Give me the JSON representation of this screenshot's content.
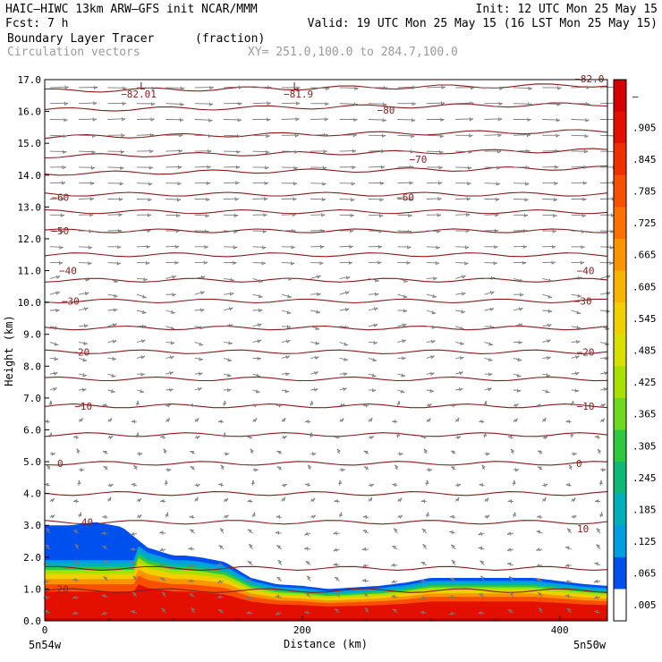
{
  "header": {
    "line1_left": "HAIC—HIWC 13km ARW—GFS init   NCAR/MMM",
    "line1_right": "Init: 12 UTC Mon 25 May 15",
    "line2_left": "Fcst:    7 h",
    "line2_right": "Valid: 19 UTC Mon 25 May 15 (16 LST Mon 25 May 15)",
    "field1_name": "Boundary Layer Tracer",
    "field1_units": "(fraction)",
    "field2_name": "Circulation vectors",
    "xsect_coords": "XY= 251.0,100.0 to 284.7,100.0"
  },
  "colors": {
    "contour": "#8b1a1a",
    "vector": "#7a7a7a",
    "header_gray": "#9a9a9a"
  },
  "chart_data": {
    "type": "heatmap",
    "ylabel": "Height (km)",
    "xlabel": "Distance (km)",
    "ylim": [
      0,
      17
    ],
    "xlim": [
      0,
      437
    ],
    "y_ticks": [
      "0.0",
      "1.0",
      "2.0",
      "3.0",
      "4.0",
      "5.0",
      "6.0",
      "7.0",
      "8.0",
      "9.0",
      "10.0",
      "11.0",
      "12.0",
      "13.0",
      "14.0",
      "15.0",
      "16.0",
      "17.0"
    ],
    "x_ticks": [
      0,
      200,
      400
    ],
    "x_tick_labels": [
      "0",
      "200",
      "400"
    ],
    "x_endpoint_left": "5n54w",
    "x_endpoint_right": "5n50w",
    "colorbar": {
      "labels": [
        "–",
        ".905",
        ".845",
        ".785",
        ".725",
        ".665",
        ".605",
        ".545",
        ".485",
        ".425",
        ".365",
        ".305",
        ".245",
        ".185",
        ".125",
        ".065",
        ".005"
      ],
      "colors": [
        "#d40000",
        "#e31000",
        "#f03000",
        "#f85000",
        "#fc7000",
        "#fc9400",
        "#f8b400",
        "#f0d000",
        "#d8e000",
        "#a8e000",
        "#70d820",
        "#30c840",
        "#10b878",
        "#00b0b8",
        "#00a0e0",
        "#0050f0",
        "#ffffff"
      ]
    },
    "tracer_profile": {
      "x_km": [
        0,
        20,
        40,
        60,
        80,
        100,
        110,
        120,
        140,
        160,
        180,
        200,
        220,
        240,
        260,
        280,
        300,
        320,
        340,
        360,
        380,
        400,
        420,
        437
      ],
      "top_km": [
        3.0,
        3.0,
        3.1,
        2.95,
        2.3,
        2.05,
        2.05,
        2.0,
        1.85,
        1.35,
        1.15,
        1.1,
        1.0,
        1.05,
        1.1,
        1.2,
        1.35,
        1.35,
        1.35,
        1.35,
        1.35,
        1.25,
        1.15,
        1.1
      ]
    },
    "temperature_contours": {
      "levels": [
        -80,
        -70,
        -60,
        -50,
        -40,
        -30,
        -20,
        -10,
        0,
        10,
        20
      ],
      "lines_km": [
        0.95,
        1.65,
        3.1,
        4.0,
        4.95,
        5.85,
        6.75,
        7.6,
        8.45,
        9.2,
        10.05,
        10.7,
        11.5,
        12.25,
        12.85,
        13.4,
        14.05,
        14.6,
        15.2,
        16.05,
        16.65
      ],
      "labels": [
        {
          "text": "20",
          "x_km": 14,
          "y_km": 1.0
        },
        {
          "text": "40",
          "x_km": 33,
          "y_km": 3.1
        },
        {
          "text": "10",
          "x_km": 418,
          "y_km": 2.9
        },
        {
          "text": "0",
          "x_km": 12,
          "y_km": 4.95
        },
        {
          "text": "0",
          "x_km": 415,
          "y_km": 4.95
        },
        {
          "text": "−10",
          "x_km": 30,
          "y_km": 6.75
        },
        {
          "text": "−10",
          "x_km": 420,
          "y_km": 6.75
        },
        {
          "text": "−20",
          "x_km": 28,
          "y_km": 8.45
        },
        {
          "text": "−20",
          "x_km": 420,
          "y_km": 8.45
        },
        {
          "text": "−30",
          "x_km": 20,
          "y_km": 10.05
        },
        {
          "text": "−30",
          "x_km": 418,
          "y_km": 10.05
        },
        {
          "text": "−40",
          "x_km": 18,
          "y_km": 11.0
        },
        {
          "text": "−40",
          "x_km": 420,
          "y_km": 11.0
        },
        {
          "text": "−50",
          "x_km": 12,
          "y_km": 12.25
        },
        {
          "text": "−60",
          "x_km": 12,
          "y_km": 13.3
        },
        {
          "text": "−60",
          "x_km": 280,
          "y_km": 13.3
        },
        {
          "text": "−70",
          "x_km": 290,
          "y_km": 14.5
        },
        {
          "text": "−80",
          "x_km": 265,
          "y_km": 16.05
        },
        {
          "text": "−82.01",
          "x_km": 73,
          "y_km": 16.55
        },
        {
          "text": "−81.9",
          "x_km": 197,
          "y_km": 16.55
        }
      ],
      "low_markers": [
        {
          "text": "L",
          "x_km": 76,
          "y_km": 16.8
        },
        {
          "text": "L",
          "x_km": 195,
          "y_km": 16.8
        }
      ],
      "edge_label": {
        "text": "−82.0",
        "x_km": 423,
        "y_km": 17.0
      }
    }
  }
}
